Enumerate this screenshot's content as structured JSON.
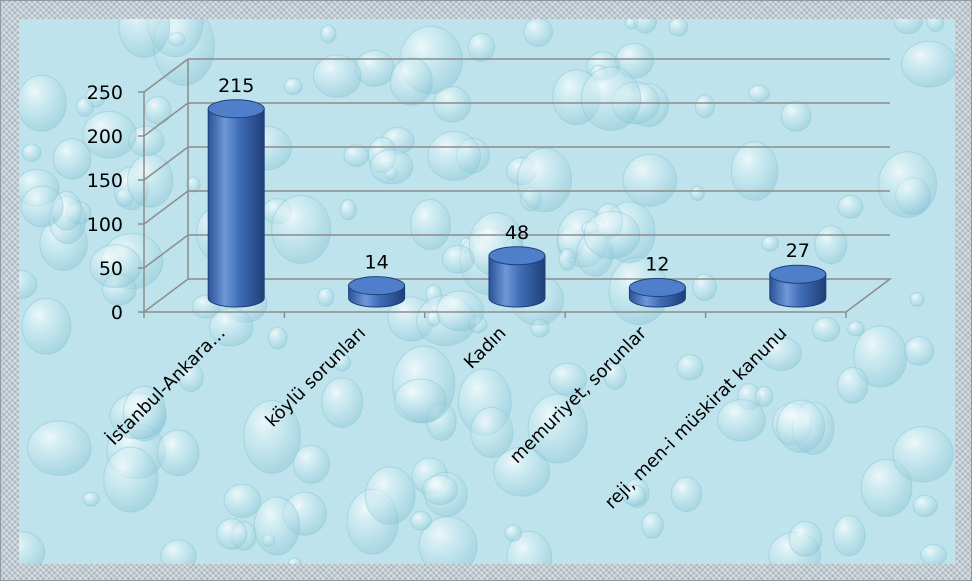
{
  "chart_data": {
    "type": "bar",
    "style": "3d-cylinder",
    "categories": [
      "İstanbul-Ankara...",
      "köylü sorunları",
      "Kadın",
      "memuriyet, sorunlar",
      "reji, men-i müskirat kanunu"
    ],
    "values": [
      215,
      14,
      48,
      12,
      27
    ],
    "data_labels": [
      "215",
      "14",
      "48",
      "12",
      "27"
    ],
    "y_ticks": [
      "0",
      "50",
      "100",
      "150",
      "200",
      "250"
    ],
    "ylim": [
      0,
      250
    ],
    "grid": true,
    "legend": "none",
    "colors": {
      "bar_body": "#3a67b0",
      "bar_light": "#7aa3df",
      "bar_dark": "#1f3f78",
      "bar_top": "#4f7fca",
      "gridline": "#8c8c8c",
      "plot_background": "#bfe3ec",
      "frame": "#c3ccd3"
    }
  }
}
